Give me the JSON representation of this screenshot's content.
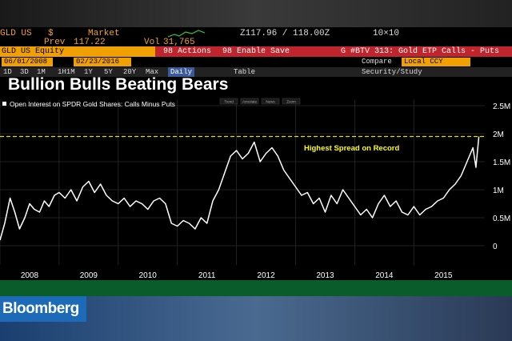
{
  "ticker": {
    "symbol": "GLD US",
    "currency": "$",
    "price_source": "Market",
    "prev_label": "Prev",
    "prev_value": "117.22",
    "vol_label": "Vol",
    "vol_value": "31,765",
    "quote": "Z117.96 / 118.00Z",
    "size": "10×10"
  },
  "actions": {
    "equity": "GLD US Equity",
    "actions_menu": "98 Actions",
    "enable_save": "98 Enable Save",
    "btv": "G #BTV 313: Gold ETP Calls - Puts"
  },
  "dates": {
    "start": "06/01/2008",
    "end": "02/23/2016",
    "compare_label": "Compare",
    "compare_value": "Local CCY"
  },
  "nav": {
    "periods": [
      "1D",
      "3D",
      "1M",
      "1H1M",
      "1Y",
      "5Y",
      "20Y",
      "Max"
    ],
    "daily": "Daily",
    "table": "Table",
    "security": "Security/Study"
  },
  "colors": {
    "series": "#ffffff",
    "reference_line": "#e8e000",
    "annotation": "#ffff00",
    "axis_text": "#ffffff"
  },
  "chart_data": {
    "type": "line",
    "title": "Bullion Bulls Beating Bears",
    "legend": "Open Interest on SPDR Gold Shares: Calls Minus Puts",
    "legend_position": "top-left",
    "toolbar": [
      "Trend",
      "Annotate",
      "News",
      "Zoom"
    ],
    "annotation": "Highest Spread on Record",
    "reference_line": 1950000,
    "y_ticks": [
      {
        "value": 0,
        "label": "0"
      },
      {
        "value": 500000,
        "label": "0.5M"
      },
      {
        "value": 1000000,
        "label": "1M"
      },
      {
        "value": 1500000,
        "label": "1.5M"
      },
      {
        "value": 2000000,
        "label": "2M"
      },
      {
        "value": 2500000,
        "label": "2.5M"
      }
    ],
    "ylim": [
      -200000,
      2600000
    ],
    "xlim": [
      2008.0,
      2016.2
    ],
    "x_ticks": [
      2008,
      2009,
      2010,
      2011,
      2012,
      2013,
      2014,
      2015
    ],
    "grid": true,
    "x": [
      2008.0,
      2008.08,
      2008.17,
      2008.25,
      2008.33,
      2008.42,
      2008.5,
      2008.58,
      2008.67,
      2008.75,
      2008.83,
      2008.92,
      2009.0,
      2009.1,
      2009.2,
      2009.3,
      2009.4,
      2009.5,
      2009.6,
      2009.7,
      2009.8,
      2009.9,
      2010.0,
      2010.1,
      2010.2,
      2010.3,
      2010.4,
      2010.5,
      2010.6,
      2010.7,
      2010.8,
      2010.9,
      2011.0,
      2011.1,
      2011.2,
      2011.3,
      2011.4,
      2011.5,
      2011.6,
      2011.7,
      2011.8,
      2011.9,
      2012.0,
      2012.1,
      2012.2,
      2012.3,
      2012.4,
      2012.5,
      2012.6,
      2012.7,
      2012.8,
      2012.9,
      2013.0,
      2013.1,
      2013.2,
      2013.3,
      2013.4,
      2013.5,
      2013.6,
      2013.7,
      2013.8,
      2013.9,
      2014.0,
      2014.1,
      2014.2,
      2014.3,
      2014.4,
      2014.5,
      2014.6,
      2014.7,
      2014.8,
      2014.9,
      2015.0,
      2015.1,
      2015.2,
      2015.3,
      2015.4,
      2015.5,
      2015.6,
      2015.7,
      2015.8,
      2015.9,
      2016.0,
      2016.05,
      2016.1
    ],
    "y": [
      100000,
      400000,
      850000,
      600000,
      300000,
      500000,
      750000,
      650000,
      600000,
      800000,
      700000,
      900000,
      950000,
      850000,
      1000000,
      800000,
      1050000,
      1150000,
      950000,
      1100000,
      900000,
      800000,
      750000,
      850000,
      700000,
      800000,
      750000,
      650000,
      800000,
      850000,
      750000,
      400000,
      350000,
      450000,
      400000,
      300000,
      500000,
      400000,
      800000,
      1000000,
      1300000,
      1600000,
      1700000,
      1550000,
      1650000,
      1850000,
      1500000,
      1650000,
      1750000,
      1600000,
      1350000,
      1200000,
      1050000,
      900000,
      950000,
      750000,
      850000,
      600000,
      900000,
      750000,
      1000000,
      850000,
      700000,
      550000,
      650000,
      500000,
      750000,
      900000,
      700000,
      800000,
      600000,
      550000,
      700000,
      550000,
      650000,
      700000,
      800000,
      850000,
      1000000,
      1100000,
      1250000,
      1500000,
      1750000,
      1400000,
      1950000
    ]
  }
}
